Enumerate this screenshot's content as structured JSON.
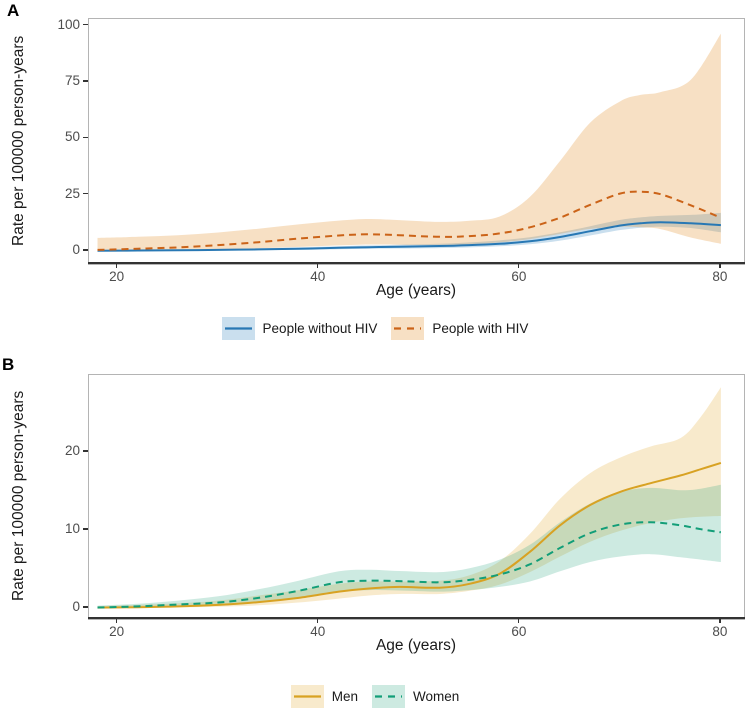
{
  "figure_title": "",
  "chart_data": [
    {
      "type": "line",
      "panel_label": "A",
      "xlabel": "Age (years)",
      "ylabel": "Rate per 100000 person-years",
      "x_ticks": [
        20,
        40,
        60,
        80
      ],
      "y_ticks": [
        0,
        25,
        50,
        75,
        100
      ],
      "xlim": [
        17.2,
        82.4
      ],
      "ylim": [
        -5.8,
        103
      ],
      "grid": false,
      "legend_position": "bottom",
      "series": [
        {
          "name": "People without HIV",
          "line_style": "solid",
          "line_color": "#2878b4",
          "band_color": "rgba(49,130,189,0.26)",
          "x": [
            18,
            22,
            26,
            30,
            34,
            38,
            42,
            45,
            48,
            52,
            55,
            58,
            61,
            64,
            67,
            70,
            72,
            74,
            77,
            80
          ],
          "y": [
            0.1,
            0.2,
            0.3,
            0.5,
            0.7,
            1.0,
            1.4,
            1.7,
            1.9,
            2.2,
            2.6,
            3.2,
            4.3,
            6.2,
            8.8,
            11.3,
            12.3,
            12.8,
            12.3,
            11.5
          ],
          "lower": [
            0,
            0.05,
            0.1,
            0.2,
            0.35,
            0.55,
            0.8,
            1.0,
            1.1,
            1.3,
            1.6,
            2.1,
            3.0,
            4.6,
            6.9,
            9.3,
            10.3,
            10.8,
            10.2,
            8.3
          ],
          "upper": [
            0.2,
            0.4,
            0.6,
            0.9,
            1.2,
            1.6,
            2.1,
            2.5,
            2.8,
            3.2,
            3.8,
            4.7,
            6.1,
            8.3,
            11.0,
            13.8,
            14.9,
            15.6,
            16.0,
            16.9
          ]
        },
        {
          "name": "People with HIV",
          "line_style": "dashed",
          "line_color": "#cb6318",
          "band_color": "rgba(224,130,20,0.25)",
          "x": [
            18,
            22,
            26,
            30,
            34,
            38,
            42,
            45,
            48,
            52,
            55,
            58,
            61,
            64,
            67,
            70,
            72,
            74,
            77,
            80
          ],
          "y": [
            0.5,
            1.0,
            1.6,
            2.6,
            3.9,
            5.5,
            6.9,
            7.4,
            7.0,
            6.3,
            6.6,
            7.8,
            10.5,
            14.8,
            20.5,
            25.5,
            26.3,
            25.2,
            20.3,
            14.8
          ],
          "lower": [
            0.05,
            0.15,
            0.35,
            0.7,
            1.2,
            1.8,
            2.5,
            2.9,
            2.8,
            2.7,
            3.0,
            3.8,
            5.3,
            7.6,
            9.8,
            10.8,
            10.5,
            9.7,
            6.0,
            3.2
          ],
          "upper": [
            5.8,
            6.3,
            7.0,
            8.2,
            9.9,
            11.8,
            13.5,
            14.2,
            13.7,
            12.9,
            13.4,
            15.3,
            24.0,
            40.0,
            57.0,
            66.5,
            69.3,
            70.5,
            76.0,
            96.5
          ]
        }
      ]
    },
    {
      "type": "line",
      "panel_label": "B",
      "xlabel": "Age (years)",
      "ylabel": "Rate per 100000 person-years",
      "x_ticks": [
        20,
        40,
        60,
        80
      ],
      "y_ticks": [
        0,
        10,
        20
      ],
      "xlim": [
        17.2,
        82.4
      ],
      "ylim": [
        -1.4,
        29.9
      ],
      "grid": false,
      "legend_position": "bottom",
      "series": [
        {
          "name": "Men",
          "line_style": "solid",
          "line_color": "#d8a223",
          "band_color": "rgba(223,161,24,0.22)",
          "x": [
            18,
            22,
            26,
            30,
            34,
            38,
            42,
            45,
            48,
            52,
            55,
            58,
            61,
            64,
            67,
            70,
            73,
            76,
            78,
            80
          ],
          "y": [
            0.05,
            0.1,
            0.2,
            0.4,
            0.75,
            1.3,
            2.1,
            2.5,
            2.7,
            2.6,
            3.1,
            4.4,
            7.2,
            10.6,
            13.2,
            14.9,
            16.0,
            17.0,
            17.8,
            18.6
          ],
          "lower": [
            0,
            0.02,
            0.08,
            0.15,
            0.35,
            0.7,
            1.2,
            1.6,
            1.8,
            1.8,
            2.2,
            3.0,
            4.6,
            6.6,
            8.5,
            9.9,
            10.9,
            11.5,
            11.7,
            11.8
          ],
          "upper": [
            0.25,
            0.4,
            0.6,
            0.95,
            1.6,
            2.3,
            3.1,
            3.4,
            3.4,
            3.5,
            4.2,
            6.0,
            9.5,
            14.0,
            17.3,
            19.3,
            20.7,
            21.8,
            24.5,
            28.3
          ]
        },
        {
          "name": "Women",
          "line_style": "dashed",
          "line_color": "#129e78",
          "band_color": "rgba(27,158,119,0.22)",
          "x": [
            18,
            22,
            26,
            30,
            34,
            38,
            42,
            45,
            48,
            52,
            55,
            58,
            61,
            64,
            67,
            70,
            73,
            76,
            78,
            80
          ],
          "y": [
            0.07,
            0.2,
            0.45,
            0.7,
            1.3,
            2.2,
            3.3,
            3.5,
            3.45,
            3.3,
            3.6,
            4.3,
            5.6,
            7.7,
            9.6,
            10.7,
            11.0,
            10.6,
            10.1,
            9.7
          ],
          "lower": [
            0,
            0.05,
            0.15,
            0.3,
            0.65,
            1.3,
            2.1,
            2.3,
            2.25,
            2.1,
            2.3,
            2.7,
            3.4,
            4.7,
            5.9,
            6.6,
            6.9,
            6.5,
            6.2,
            5.9
          ],
          "upper": [
            0.3,
            0.55,
            0.95,
            1.5,
            2.4,
            3.5,
            4.7,
            4.9,
            4.75,
            4.6,
            5.1,
            6.2,
            8.1,
            11.0,
            13.4,
            14.9,
            15.4,
            15.1,
            15.3,
            15.8
          ]
        }
      ]
    }
  ]
}
